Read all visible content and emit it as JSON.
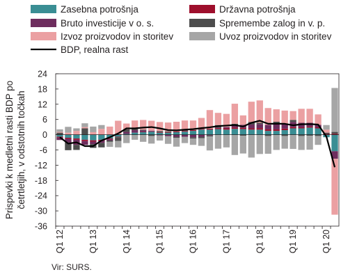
{
  "source": "Vir: SURS.",
  "chart_data": {
    "type": "bar",
    "stacked": true,
    "ylabel": "Prispevki k medletni rasti BDP po četrtletjih, v odstotnih točkah",
    "ylim": [
      -36,
      24
    ],
    "yticks": [
      24,
      18,
      12,
      6,
      0,
      -6,
      -12,
      -18,
      -24,
      -30,
      -36
    ],
    "grid": false,
    "legend_position": "top",
    "x_tick_labels": [
      "Q1 12",
      "Q1 13",
      "Q1 14",
      "Q1 15",
      "Q1 16",
      "Q1 17",
      "Q1 18",
      "Q1 19",
      "Q1 20"
    ],
    "categories": [
      "Q1 12",
      "Q2 12",
      "Q3 12",
      "Q4 12",
      "Q1 13",
      "Q2 13",
      "Q3 13",
      "Q4 13",
      "Q1 14",
      "Q2 14",
      "Q3 14",
      "Q4 14",
      "Q1 15",
      "Q2 15",
      "Q3 15",
      "Q4 15",
      "Q1 16",
      "Q2 16",
      "Q3 16",
      "Q4 16",
      "Q1 17",
      "Q2 17",
      "Q3 17",
      "Q4 17",
      "Q1 18",
      "Q2 18",
      "Q3 18",
      "Q4 18",
      "Q1 19",
      "Q2 19",
      "Q3 19",
      "Q4 19",
      "Q1 20",
      "Q2 20"
    ],
    "series": [
      {
        "name": "Zasebna potrošnja",
        "color": "#3a8e94",
        "kind": "bar",
        "values": [
          -0.8,
          -1.2,
          -1.5,
          -2.0,
          -2.2,
          -2.0,
          -1.5,
          -0.8,
          0.3,
          0.8,
          1.0,
          1.2,
          0.8,
          0.8,
          1.0,
          1.2,
          1.5,
          2.0,
          2.0,
          2.2,
          2.0,
          2.3,
          2.2,
          2.0,
          2.0,
          1.5,
          1.5,
          1.8,
          2.5,
          2.5,
          2.8,
          2.5,
          -1.0,
          -6.5
        ]
      },
      {
        "name": "Državna potrošnja",
        "color": "#9e0f2c",
        "kind": "bar",
        "values": [
          -0.3,
          -0.4,
          -0.5,
          -0.5,
          -0.5,
          -0.4,
          -0.3,
          -0.2,
          -0.1,
          0.0,
          0.1,
          0.1,
          0.2,
          0.2,
          0.3,
          0.3,
          0.3,
          0.3,
          0.4,
          0.4,
          0.5,
          0.5,
          0.5,
          0.5,
          0.6,
          0.6,
          0.6,
          0.6,
          0.5,
          0.4,
          0.4,
          0.4,
          0.3,
          0.4
        ]
      },
      {
        "name": "Bruto investicije v o. s.",
        "color": "#6e2d5e",
        "kind": "bar",
        "values": [
          -1.0,
          -1.5,
          -2.0,
          -1.5,
          -1.0,
          -0.8,
          -0.5,
          0.2,
          0.8,
          1.0,
          0.6,
          0.3,
          -0.3,
          -0.6,
          -0.8,
          -0.8,
          -1.0,
          -0.8,
          -0.3,
          0.2,
          0.5,
          1.0,
          1.2,
          1.5,
          1.6,
          1.8,
          2.0,
          2.0,
          2.0,
          1.8,
          1.5,
          1.0,
          0.0,
          -3.0
        ]
      },
      {
        "name": "Spremembe zalog in v. p.",
        "color": "#4d4d4d",
        "kind": "bar",
        "values": [
          0.8,
          -3.0,
          -2.0,
          2.5,
          -1.5,
          -1.8,
          -0.5,
          -1.5,
          1.0,
          0.5,
          0.3,
          -0.5,
          0.4,
          0.3,
          -0.4,
          0.6,
          -0.5,
          -0.6,
          -0.4,
          1.0,
          0.0,
          0.5,
          -0.4,
          1.0,
          0.5,
          -0.5,
          1.0,
          -0.5,
          0.8,
          -0.5,
          -0.4,
          -0.5,
          0.5,
          0.7
        ]
      },
      {
        "name": "Izvoz proizvodov in storitev",
        "color": "#eba0a2",
        "kind": "bar",
        "values": [
          0.3,
          0.8,
          1.5,
          0.5,
          1.0,
          2.3,
          3.2,
          5.3,
          2.3,
          3.3,
          3.8,
          3.9,
          3.6,
          3.5,
          3.8,
          3.5,
          3.8,
          4.3,
          7.3,
          4.8,
          5.2,
          7.9,
          3.7,
          8.0,
          8.8,
          6.6,
          4.9,
          5.1,
          3.5,
          5.5,
          5.5,
          4.1,
          1.2,
          -22.0
        ]
      },
      {
        "name": "Uvoz proizvodov in storitev",
        "color": "#a6a6a6",
        "kind": "bar",
        "values": [
          1.0,
          2.3,
          1.0,
          1.5,
          2.2,
          1.5,
          -2.0,
          -2.5,
          -3.2,
          -2.0,
          -2.8,
          -3.0,
          -2.0,
          -3.0,
          -3.5,
          -2.5,
          -2.5,
          -3.0,
          -5.5,
          -5.5,
          -5.0,
          -8.0,
          -7.0,
          -9.0,
          -7.6,
          -7.0,
          -6.0,
          -5.0,
          -5.6,
          -5.5,
          -5.5,
          -3.5,
          1.8,
          17.3
        ]
      },
      {
        "name": "BDP, realna rast",
        "color": "#000000",
        "kind": "line",
        "values": [
          -1.0,
          -3.5,
          -3.0,
          -4.5,
          -4.5,
          -2.3,
          -1.0,
          0.5,
          2.5,
          2.5,
          2.8,
          3.0,
          2.5,
          1.8,
          1.7,
          2.0,
          2.2,
          2.6,
          2.9,
          3.4,
          3.6,
          3.8,
          3.2,
          4.7,
          5.5,
          4.3,
          4.3,
          4.3,
          3.7,
          4.1,
          4.2,
          4.0,
          -0.7,
          -12.8
        ]
      }
    ]
  }
}
